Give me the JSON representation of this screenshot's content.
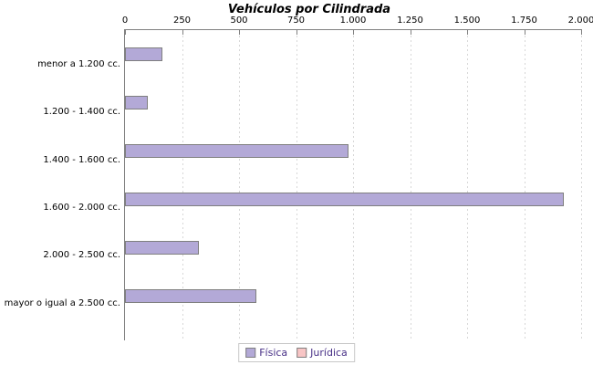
{
  "page": {
    "background": "#ffffff"
  },
  "chart_data": {
    "type": "bar",
    "orientation": "horizontal",
    "title": "Vehículos por Cilindrada",
    "categories": [
      "menor a 1.200 cc.",
      "1.200 - 1.400 cc.",
      "1.400 - 1.600 cc.",
      "1.600 - 2.000 cc.",
      "2.000 - 2.500 cc.",
      "mayor o igual a 2.500 cc."
    ],
    "series": [
      {
        "name": "Física",
        "color": "#b3a9d7",
        "border_color": "#7f7f7f",
        "values": [
          165,
          100,
          980,
          1925,
          325,
          575
        ]
      },
      {
        "name": "Jurídica",
        "color": "#f8c5c5",
        "border_color": "#7f7f7f",
        "values": [
          0,
          0,
          0,
          0,
          0,
          0
        ]
      }
    ],
    "x_axis": {
      "position": "top",
      "min": 0,
      "max": 2000,
      "tick_interval": 250,
      "tick_labels": [
        "0",
        "250",
        "500",
        "750",
        "1.000",
        "1.250",
        "1.500",
        "1.750",
        "2.000"
      ]
    },
    "grid": "dashed-vertical",
    "legend": {
      "position": "bottom-center",
      "entries": [
        "Física",
        "Jurídica"
      ]
    },
    "colors": {
      "axis": "#808080",
      "gridline": "#d7d7d7",
      "text": "#000000",
      "legend_text": "#472f86",
      "legend_border": "#c8c8c8"
    }
  }
}
